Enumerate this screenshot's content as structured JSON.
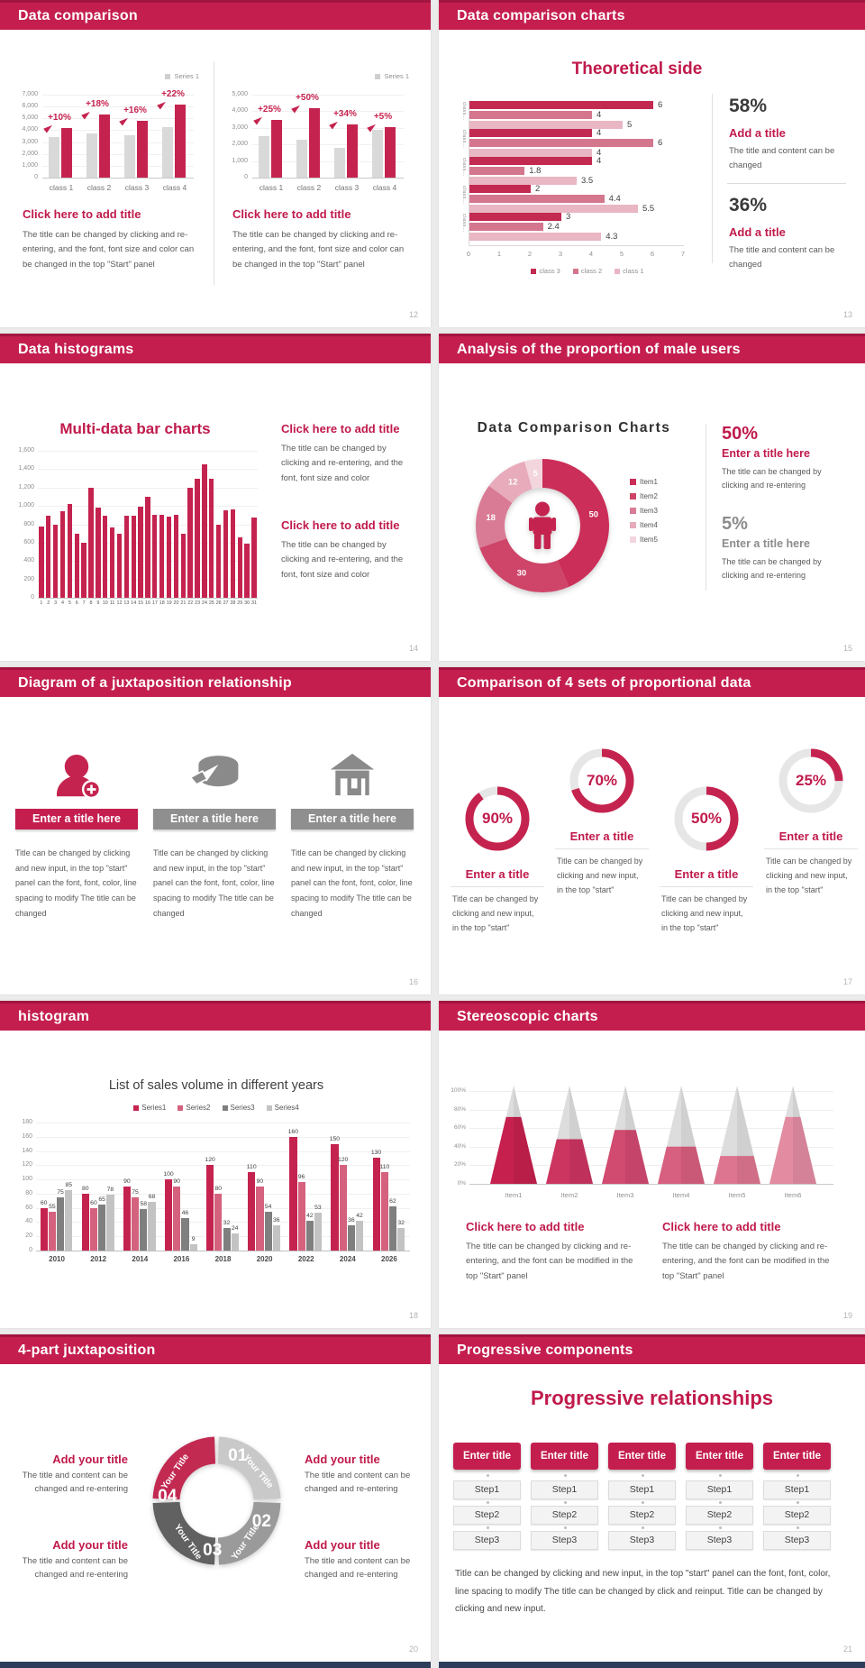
{
  "grid": {
    "gap_color": "#ebebeb",
    "next_row_sliver_color": "#2f3d5c"
  },
  "colors": {
    "crimson": "#c41e4f",
    "crimson_dark": "#a21540",
    "accent_text": "#c01a4b",
    "bar_red": "#c5234f",
    "bar_gray": "#d9d9d9",
    "text_dark": "#3a3a3a",
    "text_gray": "#5a5a5a"
  },
  "slides": {
    "s12": {
      "header": "Data comparison",
      "page": "12",
      "legend": "Series 1",
      "caption": "Click here to add title",
      "body": "The title can be changed by clicking and re-entering, and the font, font size and color can be changed in the top \"Start\" panel",
      "charts": [
        {
          "type": "bar",
          "ymax": 7000,
          "ystep": 1000,
          "categories": [
            "class 1",
            "class 2",
            "class 3",
            "class 4"
          ],
          "base": [
            3400,
            3700,
            3600,
            4300
          ],
          "compare": [
            4200,
            5300,
            4800,
            6200
          ],
          "deltas": [
            "+10%",
            "+18%",
            "+16%",
            "+22%"
          ]
        },
        {
          "type": "bar",
          "ymax": 5000,
          "ystep": 1000,
          "categories": [
            "class 1",
            "class 2",
            "class 3",
            "class 4"
          ],
          "base": [
            2500,
            2300,
            1800,
            2900
          ],
          "compare": [
            3500,
            4200,
            3200,
            3050
          ],
          "deltas": [
            "+25%",
            "+50%",
            "+34%",
            "+5%"
          ]
        }
      ]
    },
    "s13": {
      "header": "Data comparison charts",
      "page": "13",
      "chart_title": "Theoretical side",
      "chart": {
        "type": "bar-horizontal",
        "xmax": 7,
        "xticks": [
          "0",
          "1",
          "2",
          "3",
          "4",
          "5",
          "6",
          "7"
        ],
        "row_label": "class…",
        "series_order": [
          "class 3",
          "class 2",
          "class 1"
        ],
        "series_colors": [
          "#c22a52",
          "#d4768e",
          "#e9b6c4"
        ],
        "groups": [
          [
            6,
            4,
            5
          ],
          [
            4,
            6,
            4
          ],
          [
            4,
            1.8,
            3.5
          ],
          [
            2,
            4.4,
            5.5
          ],
          [
            3,
            2.4,
            4.3
          ]
        ]
      },
      "stats": [
        {
          "pct": "58%",
          "title": "Add a title",
          "body": "The title and content can be changed"
        },
        {
          "pct": "36%",
          "title": "Add a title",
          "body": "The title and content can be changed"
        }
      ]
    },
    "s14": {
      "header": "Data histograms",
      "page": "14",
      "chart_title": "Multi-data bar charts",
      "chart": {
        "type": "bar",
        "ymax": 1600,
        "ystep": 200,
        "values": [
          780,
          890,
          800,
          940,
          1020,
          700,
          600,
          1200,
          980,
          890,
          770,
          700,
          890,
          890,
          990,
          1100,
          900,
          900,
          880,
          900,
          700,
          1200,
          1300,
          1450,
          1300,
          800,
          950,
          960,
          660,
          590,
          870
        ]
      },
      "blocks": [
        {
          "title": "Click here to add title",
          "body": "The title can be changed by clicking and re-entering, and the font, font size and color"
        },
        {
          "title": "Click here to add title",
          "body": "The title can be changed by clicking and re-entering, and the font, font size and color"
        }
      ]
    },
    "s15": {
      "header": "Analysis of the proportion of male users",
      "page": "15",
      "chart_title": "Data Comparison Charts",
      "donut": {
        "type": "pie",
        "values": [
          50,
          30,
          18,
          12,
          5
        ],
        "labels": [
          "50",
          "30",
          "18",
          "12",
          "5"
        ],
        "legend": [
          "Item1",
          "Item2",
          "Item3",
          "Item4",
          "Item5"
        ],
        "colors": [
          "#cb2e58",
          "#cf4569",
          "#da7b95",
          "#e7abbb",
          "#f3d5dd"
        ],
        "center_icon": "male-user-icon"
      },
      "stats": [
        {
          "pct": "50%",
          "title": "Enter a title here",
          "body": "The title can be changed by clicking and re-entering",
          "accent": true
        },
        {
          "pct": "5%",
          "title": "Enter a title here",
          "body": "The title can be changed by clicking and re-entering",
          "accent": false
        }
      ]
    },
    "s16": {
      "header": "Diagram of a juxtaposition relationship",
      "page": "16",
      "items": [
        {
          "icon": "woman-add-icon",
          "accent": true,
          "title": "Enter a title here",
          "body": "Title can be changed by clicking and new input, in the top \"start\" panel can the font, font, color, line spacing to modify The title can be changed"
        },
        {
          "icon": "pie-3d-icon",
          "accent": false,
          "title": "Enter a title here",
          "body": "Title can be changed by clicking and new input, in the top \"start\" panel can the font, font, color, line spacing to modify The title can be changed"
        },
        {
          "icon": "building-icon",
          "accent": false,
          "title": "Enter a title here",
          "body": "Title can be changed by clicking and new input, in the top \"start\" panel can the font, font, color, line spacing to modify The title can be changed"
        }
      ]
    },
    "s17": {
      "header": "Comparison of 4 sets of proportional data",
      "page": "17",
      "gauges": [
        {
          "value": 90,
          "label": "90%",
          "raised": false,
          "title": "Enter a title",
          "body": "Title can be changed by clicking and new input, in the top \"start\""
        },
        {
          "value": 70,
          "label": "70%",
          "raised": true,
          "title": "Enter a title",
          "body": "Title can be changed by clicking and new input, in the top \"start\""
        },
        {
          "value": 50,
          "label": "50%",
          "raised": false,
          "title": "Enter a title",
          "body": "Title can be changed by clicking and new input, in the top \"start\""
        },
        {
          "value": 25,
          "label": "25%",
          "raised": true,
          "title": "Enter a title",
          "body": "Title can be changed by clicking and new input, in the top \"start\""
        }
      ]
    },
    "s18": {
      "header": "histogram",
      "page": "18",
      "chart_title": "List of sales volume in different years",
      "chart": {
        "type": "bar",
        "ymax": 180,
        "ystep": 20,
        "categories": [
          "2010",
          "2012",
          "2014",
          "2016",
          "2018",
          "2020",
          "2022",
          "2024",
          "2026"
        ],
        "series": [
          {
            "name": "Series1",
            "color": "#c5234f",
            "values": [
              60,
              80,
              90,
              100,
              120,
              110,
              160,
              150,
              130
            ]
          },
          {
            "name": "Series2",
            "color": "#d4627f",
            "values": [
              55,
              60,
              75,
              90,
              80,
              90,
              96,
              120,
              110
            ]
          },
          {
            "name": "Series3",
            "color": "#7f7f7f",
            "values": [
              75,
              65,
              58,
              46,
              32,
              54,
              42,
              36,
              62
            ]
          },
          {
            "name": "Series4",
            "color": "#c3c3c3",
            "values": [
              85,
              78,
              68,
              9,
              24,
              36,
              53,
              42,
              32
            ]
          }
        ]
      }
    },
    "s19": {
      "header": "Stereoscopic charts",
      "page": "19",
      "cones": {
        "type": "bar",
        "ymax": 100,
        "categories": [
          "Item1",
          "Item2",
          "Item3",
          "Item4",
          "Item5",
          "Item6"
        ],
        "values": [
          72,
          48,
          58,
          40,
          30,
          72
        ],
        "colors": [
          "#c5204e",
          "#cb3560",
          "#d14a70",
          "#d75f80",
          "#dd7590",
          "#e28ba1"
        ],
        "yticks": [
          "100%",
          "80%",
          "60%",
          "40%",
          "20%",
          "0%"
        ]
      },
      "blocks": [
        {
          "title": "Click here to add title",
          "body": "The title can be changed by clicking and re-entering, and the font can be modified in the top \"Start\" panel"
        },
        {
          "title": "Click here to add title",
          "body": "The title can be changed by clicking and re-entering, and the font can be modified in the top \"Start\" panel"
        }
      ]
    },
    "s20": {
      "header": "4-part juxtaposition",
      "page": "20",
      "ring": {
        "label": "Your Title",
        "segments": [
          {
            "num": "01",
            "color": "#c9c9c9"
          },
          {
            "num": "02",
            "color": "#9a9a9a"
          },
          {
            "num": "03",
            "color": "#616161"
          },
          {
            "num": "04",
            "color": "#c22a52"
          }
        ]
      },
      "notes": [
        {
          "title": "Add your title",
          "body": "The title and content can be changed and re-entering"
        },
        {
          "title": "Add your title",
          "body": "The title and content can be changed and re-entering"
        },
        {
          "title": "Add your title",
          "body": "The title and content can be changed and re-entering"
        },
        {
          "title": "Add your title",
          "body": "The title and content can be changed and re-entering"
        }
      ]
    },
    "s21": {
      "header": "Progressive components",
      "page": "21",
      "title": "Progressive relationships",
      "button_label": "Enter title",
      "columns": 5,
      "steps": [
        "Step1",
        "Step2",
        "Step3"
      ],
      "body": "Title can be changed by clicking and new input, in the top \"start\" panel can the font, font, color, line spacing to modify The title can be changed by click and reinput. Title can be changed by clicking and new input."
    }
  }
}
